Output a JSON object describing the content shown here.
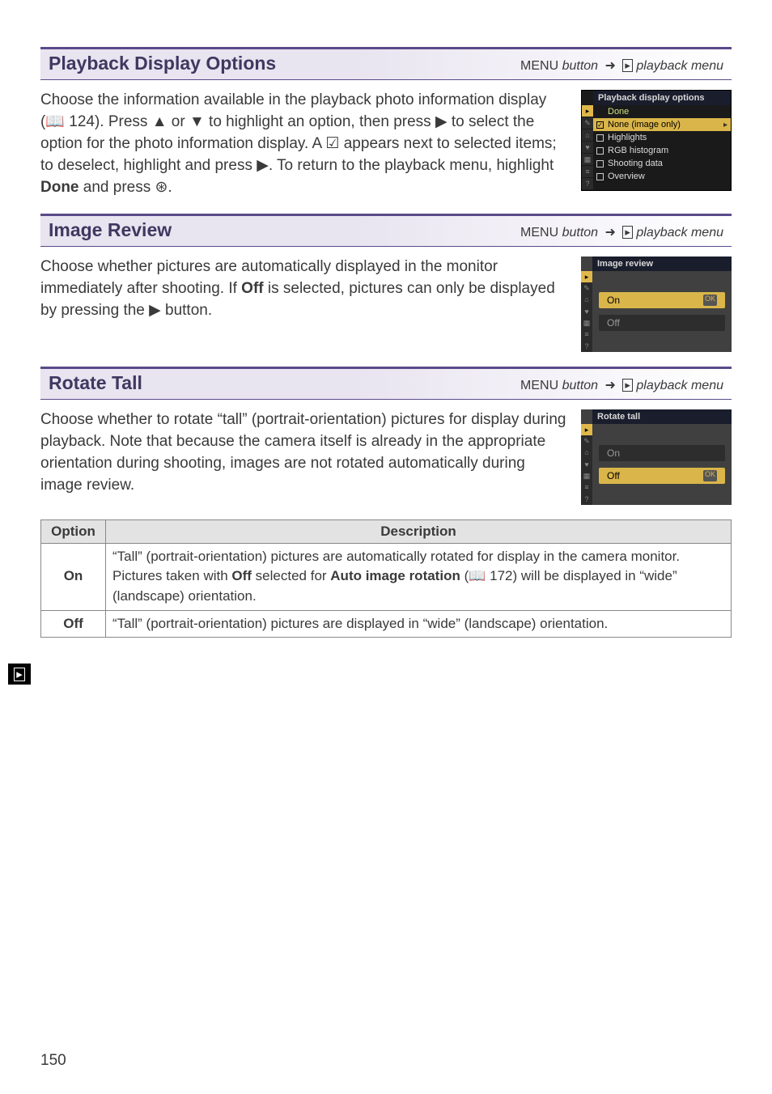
{
  "sections": {
    "pdo": {
      "title": "Playback Display Options",
      "menu_prefix": "MENU",
      "menu_word": "button",
      "menu_suffix": "playback menu",
      "body": "Choose the information available in the playback photo information display (📖 124). Press ▲ or ▼ to highlight an option, then press ▶ to select the option for the photo information display.  A ☑ appears next to selected items; to deselect, highlight and press ▶.  To return to the playback menu, highlight ",
      "done_word": "Done",
      "body_tail": " and press ⊛."
    },
    "ir": {
      "title": "Image Review",
      "menu_prefix": "MENU",
      "menu_word": "button",
      "menu_suffix": "playback menu",
      "body_a": "Choose whether pictures are automatically displayed in the monitor immediately after shooting.  If ",
      "off_word": "Off",
      "body_b": " is selected, pictures can only be displayed by pressing the ▶ button."
    },
    "rt": {
      "title": "Rotate Tall",
      "menu_prefix": "MENU",
      "menu_word": "button",
      "menu_suffix": "playback menu",
      "body": "Choose whether to rotate “tall” (portrait-orientation) pictures for display during playback.  Note that because the camera itself is already in the appropriate orientation during shooting, images are not rotated automatically during image review."
    }
  },
  "lcd_pdo": {
    "title": "Playback display options",
    "done": "Done",
    "rows": [
      {
        "checked": true,
        "label": "None (image only)",
        "selected": true
      },
      {
        "checked": false,
        "label": "Highlights"
      },
      {
        "checked": false,
        "label": "RGB histogram"
      },
      {
        "checked": false,
        "label": "Shooting data"
      },
      {
        "checked": false,
        "label": "Overview"
      }
    ],
    "left_icons": [
      "▸",
      "✎",
      "⌂",
      "♥",
      "▦",
      "≡",
      "?"
    ]
  },
  "lcd_ir": {
    "title": "Image review",
    "options": [
      {
        "label": "On",
        "selected": true
      },
      {
        "label": "Off",
        "selected": false
      }
    ]
  },
  "lcd_rt": {
    "title": "Rotate tall",
    "options": [
      {
        "label": "On",
        "selected": false
      },
      {
        "label": "Off",
        "selected": true
      }
    ]
  },
  "table": {
    "head_option": "Option",
    "head_desc": "Description",
    "rows": [
      {
        "name": "On",
        "desc_a": "“Tall” (portrait-orientation) pictures are automatically rotated for display in the camera monitor.  Pictures taken with ",
        "b1": "Off",
        "desc_b": " selected for ",
        "b2": "Auto image rotation",
        "desc_c": " (📖 172) will be displayed in “wide” (landscape) orientation."
      },
      {
        "name": "Off",
        "desc_a": "“Tall” (portrait-orientation) pictures are displayed in “wide” (landscape) orientation."
      }
    ]
  },
  "page_number": "150",
  "left_tab_glyph": "▸"
}
